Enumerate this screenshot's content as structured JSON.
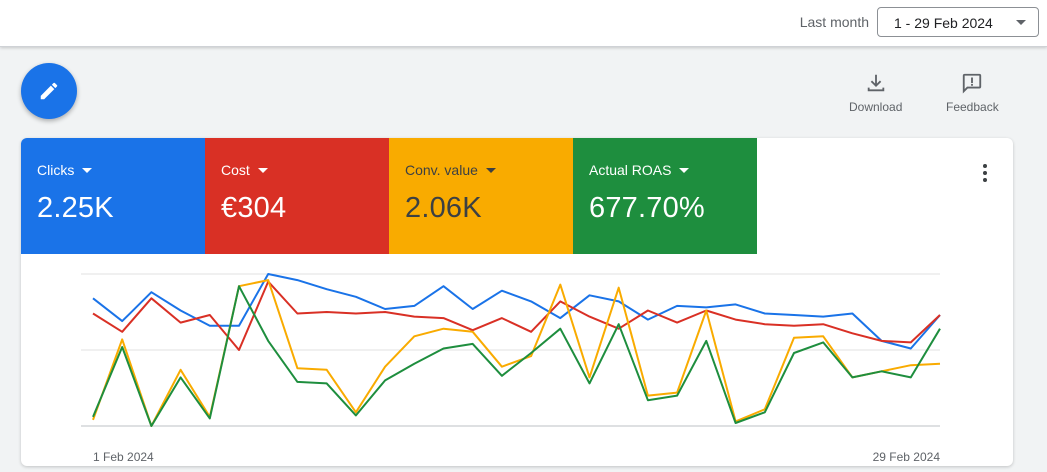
{
  "header": {
    "period_label": "Last month",
    "date_range": "1 - 29 Feb 2024"
  },
  "toolbar": {
    "edit_icon": "pencil-icon",
    "download_label": "Download",
    "feedback_label": "Feedback"
  },
  "metrics": [
    {
      "label": "Clicks",
      "value": "2.25K",
      "color": "#1a73e8",
      "text_color": "#ffffff"
    },
    {
      "label": "Cost",
      "value": "€304",
      "color": "#d93025",
      "text_color": "#ffffff"
    },
    {
      "label": "Conv. value",
      "value": "2.06K",
      "color": "#f9ab00",
      "text_color": "#3c4043"
    },
    {
      "label": "Actual ROAS",
      "value": "677.70%",
      "color": "#1e8e3e",
      "text_color": "#ffffff"
    }
  ],
  "chart_data": {
    "type": "line",
    "x_start_label": "1 Feb 2024",
    "x_end_label": "29 Feb 2024",
    "series_relative": true,
    "series": [
      {
        "metric": "Clicks",
        "color": "#1a73e8",
        "values": [
          84,
          69,
          88,
          76,
          66,
          66,
          100,
          96,
          90,
          85,
          77,
          79,
          92,
          77,
          89,
          82,
          71,
          86,
          82,
          70,
          79,
          78,
          80,
          74,
          73,
          72,
          74,
          56,
          51,
          73
        ]
      },
      {
        "metric": "Cost",
        "color": "#d93025",
        "values": [
          74,
          62,
          84,
          68,
          73,
          50,
          95,
          74,
          75,
          74,
          75,
          72,
          71,
          63,
          71,
          62,
          82,
          72,
          64,
          76,
          68,
          76,
          70,
          67,
          66,
          67,
          61,
          56,
          55,
          73
        ]
      },
      {
        "metric": "Conv. value",
        "color": "#f9ab00",
        "values": [
          4,
          57,
          0,
          37,
          6,
          92,
          96,
          38,
          37,
          9,
          39,
          59,
          64,
          62,
          39,
          46,
          93,
          32,
          91,
          20,
          22,
          76,
          3,
          11,
          58,
          59,
          32,
          36,
          40,
          41
        ]
      },
      {
        "metric": "Actual ROAS",
        "color": "#1e8e3e",
        "values": [
          6,
          52,
          0,
          32,
          5,
          92,
          56,
          29,
          28,
          7,
          30,
          41,
          51,
          54,
          33,
          48,
          64,
          28,
          67,
          17,
          20,
          56,
          2,
          9,
          48,
          55,
          32,
          36,
          32,
          64
        ]
      }
    ]
  }
}
